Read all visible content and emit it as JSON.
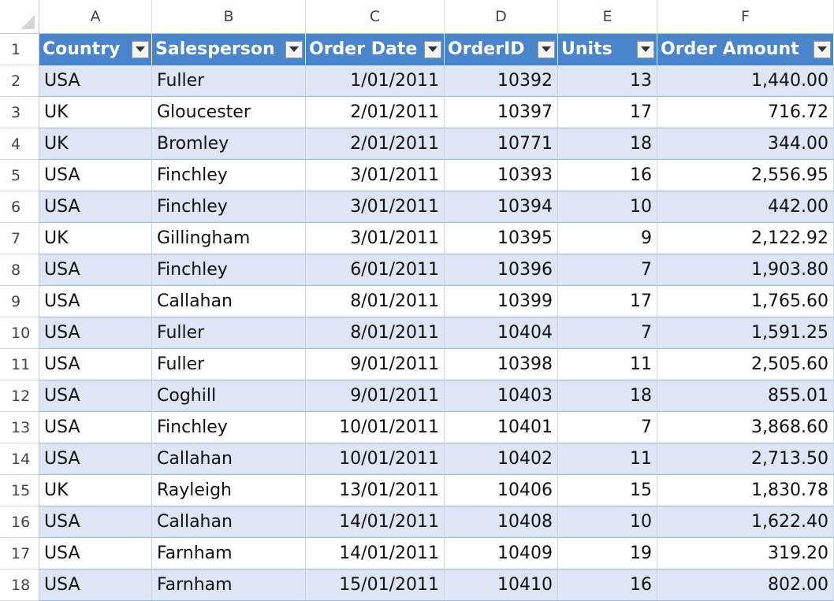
{
  "columns": [
    "A",
    "B",
    "C",
    "D",
    "E",
    "F"
  ],
  "table": {
    "headers": [
      "Country",
      "Salesperson",
      "Order Date",
      "OrderID",
      "Units",
      "Order Amount"
    ],
    "rows": [
      [
        "USA",
        "Fuller",
        "1/01/2011",
        "10392",
        "13",
        "1,440.00"
      ],
      [
        "UK",
        "Gloucester",
        "2/01/2011",
        "10397",
        "17",
        "716.72"
      ],
      [
        "UK",
        "Bromley",
        "2/01/2011",
        "10771",
        "18",
        "344.00"
      ],
      [
        "USA",
        "Finchley",
        "3/01/2011",
        "10393",
        "16",
        "2,556.95"
      ],
      [
        "USA",
        "Finchley",
        "3/01/2011",
        "10394",
        "10",
        "442.00"
      ],
      [
        "UK",
        "Gillingham",
        "3/01/2011",
        "10395",
        "9",
        "2,122.92"
      ],
      [
        "USA",
        "Finchley",
        "6/01/2011",
        "10396",
        "7",
        "1,903.80"
      ],
      [
        "USA",
        "Callahan",
        "8/01/2011",
        "10399",
        "17",
        "1,765.60"
      ],
      [
        "USA",
        "Fuller",
        "8/01/2011",
        "10404",
        "7",
        "1,591.25"
      ],
      [
        "USA",
        "Fuller",
        "9/01/2011",
        "10398",
        "11",
        "2,505.60"
      ],
      [
        "USA",
        "Coghill",
        "9/01/2011",
        "10403",
        "18",
        "855.01"
      ],
      [
        "USA",
        "Finchley",
        "10/01/2011",
        "10401",
        "7",
        "3,868.60"
      ],
      [
        "USA",
        "Callahan",
        "10/01/2011",
        "10402",
        "11",
        "2,713.50"
      ],
      [
        "UK",
        "Rayleigh",
        "13/01/2011",
        "10406",
        "15",
        "1,830.78"
      ],
      [
        "USA",
        "Callahan",
        "14/01/2011",
        "10408",
        "10",
        "1,622.40"
      ],
      [
        "USA",
        "Farnham",
        "14/01/2011",
        "10409",
        "19",
        "319.20"
      ],
      [
        "USA",
        "Farnham",
        "15/01/2011",
        "10410",
        "16",
        "802.00"
      ]
    ]
  },
  "row_numbers": [
    "1",
    "2",
    "3",
    "4",
    "5",
    "6",
    "7",
    "8",
    "9",
    "10",
    "11",
    "12",
    "13",
    "14",
    "15",
    "16",
    "17",
    "18"
  ],
  "colors": {
    "header_fill": "#4a84cb",
    "band_fill": "#dde6f4",
    "row_line": "#9fb6d9"
  },
  "icons": {
    "filter_dropdown": "chevron-down-icon",
    "select_all": "select-all-icon"
  }
}
